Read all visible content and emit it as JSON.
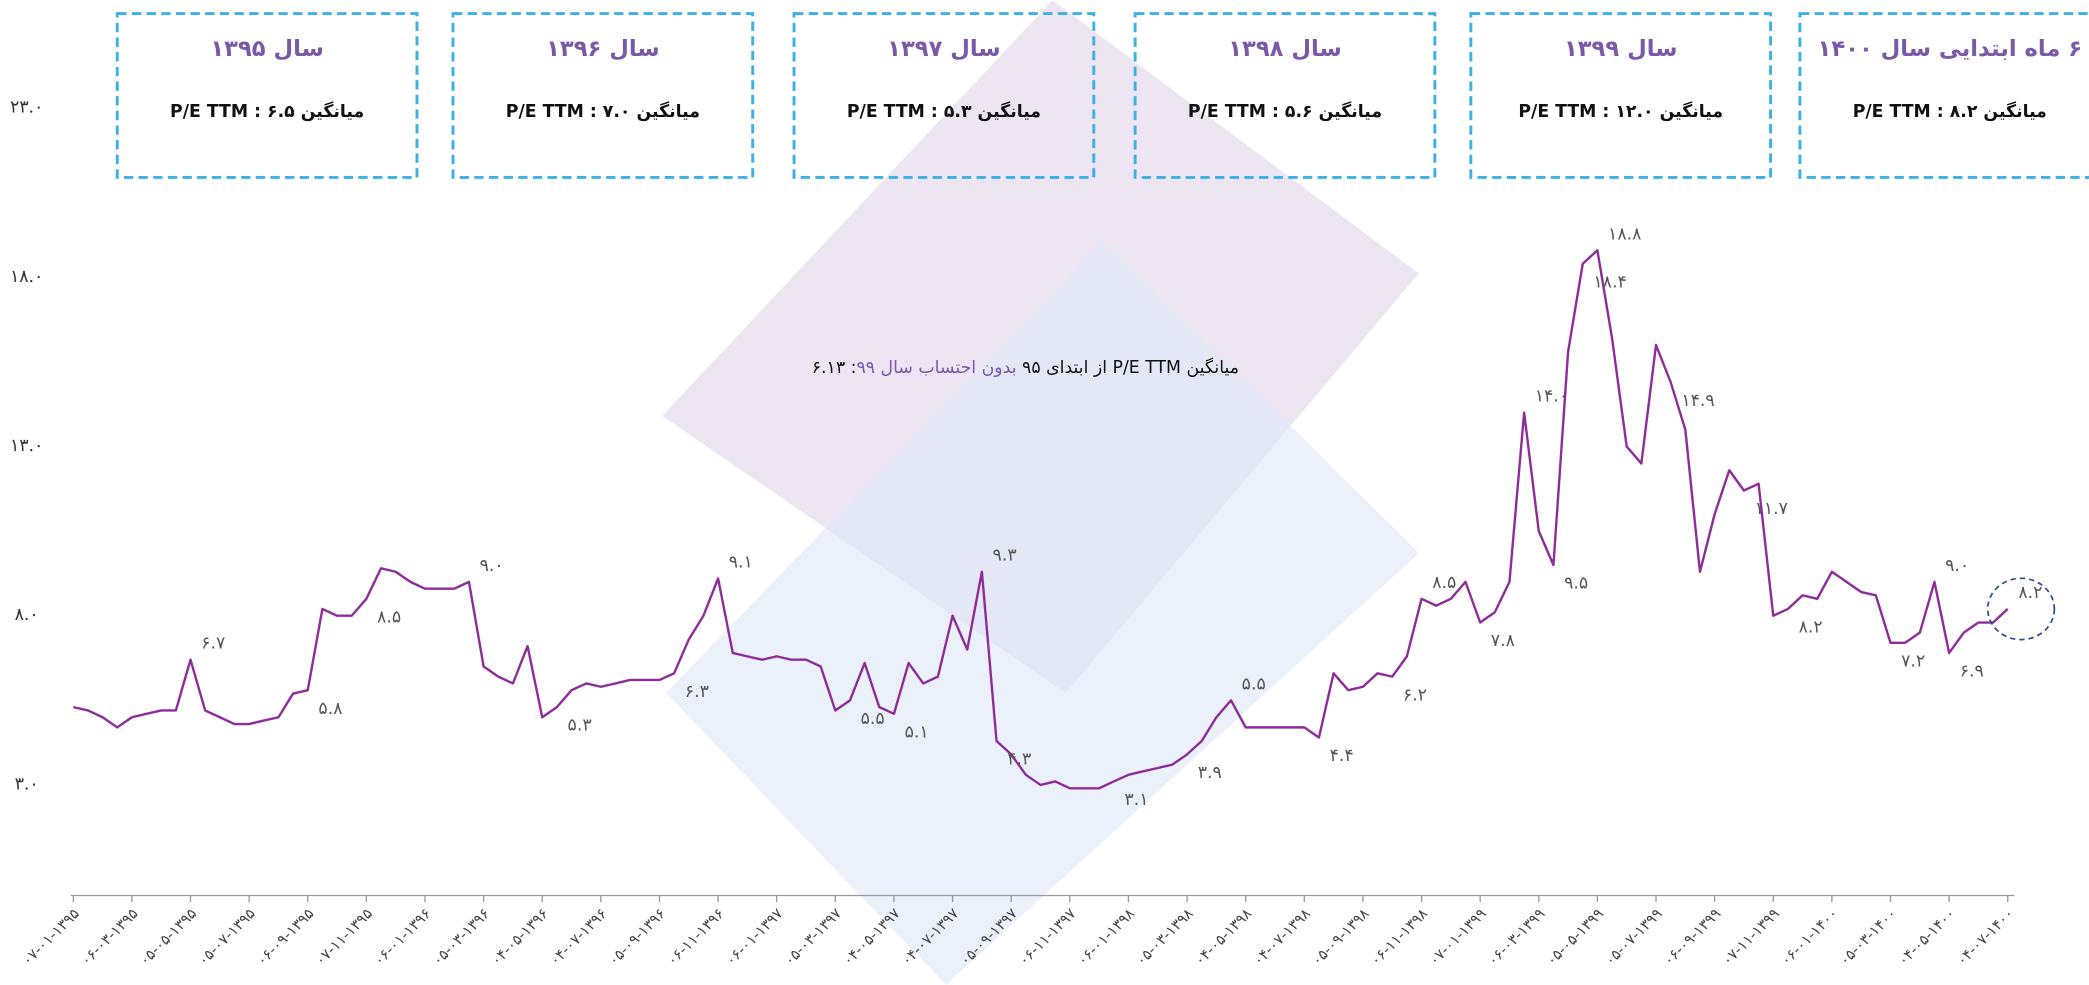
{
  "chart_data": {
    "type": "line",
    "boxes": [
      {
        "title": "سال ۱۳۹۵",
        "text": "میانگین P/E TTM : ۶.۵"
      },
      {
        "title": "سال ۱۳۹۶",
        "text": "میانگین P/E TTM : ۷.۰"
      },
      {
        "title": "سال ۱۳۹۷",
        "text": "میانگین P/E TTM : ۵.۳"
      },
      {
        "title": "سال ۱۳۹۸",
        "text": "میانگین P/E TTM : ۵.۶"
      },
      {
        "title": "سال ۱۳۹۹",
        "text": "میانگین P/E TTM : ۱۲.۰"
      },
      {
        "title": "۶ ماه ابتدایی سال ۱۴۰۰",
        "text": "میانگین P/E TTM : ۸.۲"
      }
    ],
    "annotation": {
      "text": "میانگین P/E TTM از ابتدای ۹۵ ",
      "highlight": "بدون احتساب سال ۹۹",
      "value": ": ۶.۱۳"
    },
    "categories": [
      "۰۷-۰۱-۱۳۹۵",
      null,
      null,
      null,
      "۰۶-۰۳-۱۳۹۵",
      null,
      null,
      null,
      "۰۵-۰۵-۱۳۹۵",
      null,
      null,
      null,
      "۰۵-۰۷-۱۳۹۵",
      null,
      null,
      null,
      "۰۶-۰۹-۱۳۹۵",
      null,
      null,
      null,
      "۰۷-۱۱-۱۳۹۵",
      null,
      null,
      null,
      "۰۶-۰۱-۱۳۹۶",
      null,
      null,
      null,
      "۰۵-۰۳-۱۳۹۶",
      null,
      null,
      null,
      "۰۴-۰۵-۱۳۹۶",
      null,
      null,
      null,
      "۰۴-۰۷-۱۳۹۶",
      null,
      null,
      null,
      "۰۵-۰۹-۱۳۹۶",
      null,
      null,
      null,
      "۰۶-۱۱-۱۳۹۶",
      null,
      null,
      null,
      "۰۶-۰۱-۱۳۹۷",
      null,
      null,
      null,
      "۰۵-۰۳-۱۳۹۷",
      null,
      null,
      null,
      "۰۴-۰۵-۱۳۹۷",
      null,
      null,
      null,
      "۰۴-۰۷-۱۳۹۷",
      null,
      null,
      null,
      "۰۵-۰۹-۱۳۹۷",
      null,
      null,
      null,
      "۰۶-۱۱-۱۳۹۷",
      null,
      null,
      null,
      "۰۶-۰۱-۱۳۹۸",
      null,
      null,
      null,
      "۰۵-۰۳-۱۳۹۸",
      null,
      null,
      null,
      "۰۴-۰۵-۱۳۹۸",
      null,
      null,
      null,
      "۰۴-۰۷-۱۳۹۸",
      null,
      null,
      null,
      "۰۵-۰۹-۱۳۹۸",
      null,
      null,
      null,
      "۰۶-۱۱-۱۳۹۸",
      null,
      null,
      null,
      "۰۷-۰۱-۱۳۹۹",
      null,
      null,
      null,
      "۰۶-۰۳-۱۳۹۹",
      null,
      null,
      null,
      "۰۵-۰۵-۱۳۹۹",
      null,
      null,
      null,
      "۰۵-۰۷-۱۳۹۹",
      null,
      null,
      null,
      "۰۶-۰۹-۱۳۹۹",
      null,
      null,
      null,
      "۰۷-۱۱-۱۳۹۹",
      null,
      null,
      null,
      "۰۶-۰۱-۱۴۰۰",
      null,
      null,
      null,
      "۰۵-۰۳-۱۴۰۰",
      null,
      null,
      null,
      "۰۴-۰۵-۱۴۰۰",
      null,
      null,
      null,
      "۰۴-۰۷-۱۴۰۰"
    ],
    "series": [
      {
        "color": "#8e2c9a",
        "values": [
          5.3,
          5.2,
          5.0,
          4.7,
          5.0,
          5.1,
          5.2,
          5.2,
          6.7,
          5.2,
          5.0,
          4.8,
          4.8,
          4.9,
          5.0,
          5.7,
          5.8,
          8.2,
          8.0,
          8.0,
          8.5,
          9.4,
          9.3,
          9.0,
          8.8,
          8.8,
          8.8,
          9.0,
          6.5,
          6.2,
          6.0,
          7.1,
          5.0,
          5.3,
          5.8,
          6.0,
          5.9,
          6.0,
          6.1,
          6.1,
          6.1,
          6.3,
          7.3,
          8.0,
          9.1,
          6.9,
          6.8,
          6.7,
          6.8,
          6.7,
          6.7,
          6.5,
          5.2,
          5.5,
          6.6,
          5.3,
          5.1,
          6.6,
          6.0,
          6.2,
          8.0,
          7.0,
          9.3,
          4.3,
          3.9,
          3.3,
          3.0,
          3.1,
          2.9,
          2.9,
          2.9,
          3.1,
          3.3,
          3.4,
          3.5,
          3.6,
          3.9,
          4.3,
          5.0,
          5.5,
          4.7,
          4.7,
          4.7,
          4.7,
          4.7,
          4.4,
          6.3,
          5.8,
          5.9,
          6.3,
          6.2,
          6.8,
          8.5,
          8.3,
          8.5,
          9.0,
          7.8,
          8.1,
          9.0,
          14.0,
          10.5,
          9.5,
          15.8,
          18.4,
          18.8,
          16.2,
          13.0,
          12.5,
          16.0,
          14.9,
          13.5,
          9.3,
          11.0,
          12.3,
          11.7,
          11.9,
          8.0,
          8.2,
          8.6,
          8.5,
          9.3,
          9.0,
          8.7,
          8.6,
          7.2,
          7.2,
          7.5,
          9.0,
          6.9,
          7.5,
          7.8,
          7.8,
          8.2
        ],
        "value_labels": [
          null,
          null,
          null,
          null,
          null,
          null,
          null,
          null,
          "۶.۷",
          null,
          null,
          null,
          null,
          null,
          null,
          null,
          "۵.۸",
          null,
          null,
          null,
          "۸.۵",
          null,
          null,
          null,
          null,
          null,
          null,
          "۹.۰",
          null,
          null,
          null,
          null,
          null,
          "۵.۳",
          null,
          null,
          null,
          null,
          null,
          null,
          null,
          "۶.۳",
          null,
          null,
          "۹.۱",
          null,
          null,
          null,
          null,
          null,
          null,
          null,
          null,
          "۵.۵",
          null,
          null,
          "۵.۱",
          null,
          null,
          null,
          null,
          null,
          "۹.۳",
          "۴.۳",
          null,
          null,
          null,
          null,
          null,
          null,
          null,
          "۳.۱",
          null,
          null,
          null,
          null,
          "۳.۹",
          null,
          null,
          "۵.۵",
          null,
          null,
          null,
          null,
          null,
          "۴.۴",
          null,
          null,
          null,
          null,
          "۶.۲",
          null,
          "۸.۵",
          null,
          null,
          null,
          "۷.۸",
          null,
          null,
          "۱۴.۰",
          null,
          "۹.۵",
          null,
          "۱۸.۴",
          "۱۸.۸",
          null,
          null,
          null,
          null,
          "۱۴.۹",
          null,
          null,
          null,
          null,
          "۱۱.۷",
          null,
          null,
          "۸.۲",
          null,
          null,
          null,
          null,
          null,
          null,
          "۷.۲",
          null,
          null,
          "۹.۰",
          "۶.۹",
          null,
          null,
          null,
          "۸.۲"
        ]
      }
    ],
    "ylim": [
      -0.3,
      26
    ],
    "yticks": [
      {
        "value": 3,
        "label": "۳.۰"
      },
      {
        "value": 8,
        "label": "۸.۰"
      },
      {
        "value": 13,
        "label": "۱۳.۰"
      },
      {
        "value": 18,
        "label": "۱۸.۰"
      },
      {
        "value": 23,
        "label": "۲۳.۰"
      }
    ],
    "grid": false
  }
}
